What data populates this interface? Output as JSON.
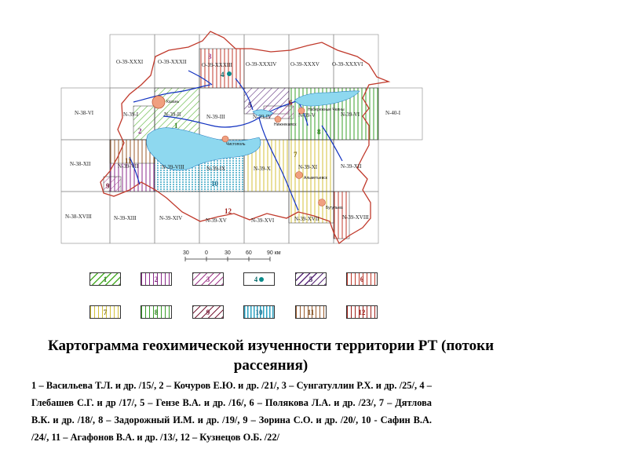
{
  "title": "Картограмма геохимической изученности территории РТ (потоки рассеяния)",
  "references": "1 – Васильева Т.Л. и др. /15/, 2 – Кочуров Е.Ю. и др. /21/, 3 – Сунгатуллин Р.Х. и др. /25/, 4 – Глебашев С.Г. и др /17/, 5 – Гензе В.А. и др. /16/, 6 – Полякова Л.А. и др. /23/, 7 – Дятлова В.К. и др. /18/, 8 – Задорожный И.М. и др. /19/, 9 – Зорина С.О. и др. /20/, 10 - Сафин В.А. /24/, 11 – Агафонов В.А. и др. /13/, 12 – Кузнецов О.Б. /22/",
  "sheets": {
    "o31": "O-39-XXXI",
    "o32": "O-39-XXXII",
    "o33": "O-39-XXXIII",
    "o34": "O-39-XXXIV",
    "o35": "O-39-XXXV",
    "o36": "O-39-XXXVI",
    "n38_6": "N-38-VI",
    "n1": "N-39-I",
    "n2": "N-39-II",
    "n3": "N-39-III",
    "n4": "N-39-IV",
    "n5": "N-39-V",
    "n6": "N-39-VI",
    "n40": "N-40-I",
    "n38_12": "N-38-XII",
    "n7": "N-39-VII",
    "n8": "N-39-VIII",
    "n9": "N-39-IX",
    "n10": "N-39-X",
    "n11": "N-39-XI",
    "n12": "N-39-XII",
    "n38_18": "N-38-XVIII",
    "n13": "N-39-XIII",
    "n14": "N-39-XIV",
    "n15": "N-39-XV",
    "n16": "N-39-XVI",
    "n17": "N-39-XVII",
    "n18": "N-39-XVIII"
  },
  "cities": {
    "kazan": "Казань",
    "naberezhnye": "Набережные Челны",
    "nizhnekamsk": "Нижнекамск",
    "chistopol": "Чистополь",
    "almetyevsk": "Альметьевск",
    "bugulma": "Бугульма"
  },
  "zone_numbers": {
    "z1": "1",
    "z2": "2",
    "z3": "3",
    "z4": "4",
    "z5": "5",
    "z6": "6",
    "z7": "7",
    "z8": "8",
    "z9": "9",
    "z10": "10",
    "z11": "11",
    "z12": "12"
  },
  "scale": {
    "t0": "30",
    "t1": "0",
    "t2": "30",
    "t3": "60",
    "t4": "90 км"
  },
  "legend": [
    {
      "label": "1",
      "color": "#4caf2a"
    },
    {
      "label": "2",
      "color": "#8b2a8b"
    },
    {
      "label": "3",
      "color": "#a13a8c"
    },
    {
      "label": "4",
      "color": "#0a8a8a"
    },
    {
      "label": "5",
      "color": "#5a2a7a"
    },
    {
      "label": "6",
      "color": "#c0392b"
    },
    {
      "label": "7",
      "color": "#d4c23a"
    },
    {
      "label": "8",
      "color": "#3aa02a"
    },
    {
      "label": "9",
      "color": "#7a1f3a"
    },
    {
      "label": "10",
      "color": "#2aa0c0"
    },
    {
      "label": "11",
      "color": "#9a5a2a"
    },
    {
      "label": "12",
      "color": "#a0201a"
    }
  ]
}
